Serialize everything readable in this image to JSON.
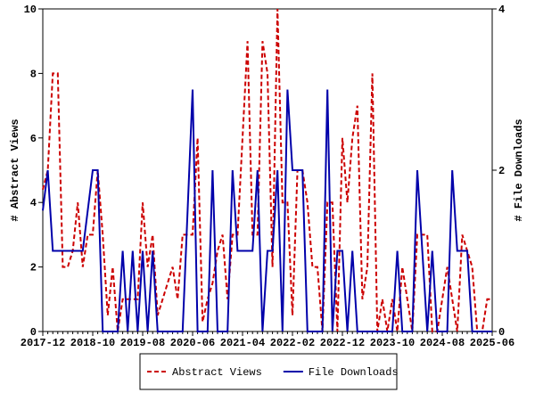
{
  "chart_data": {
    "type": "line",
    "y_label": "# Abstract Views",
    "y2_label": "# File Downloads",
    "categories": [
      "2017-12",
      null,
      null,
      null,
      null,
      null,
      null,
      null,
      null,
      null,
      "2018-10",
      null,
      null,
      null,
      null,
      null,
      null,
      null,
      null,
      null,
      "2019-08",
      null,
      null,
      null,
      null,
      null,
      null,
      null,
      null,
      null,
      "2020-06",
      null,
      null,
      null,
      null,
      null,
      null,
      null,
      null,
      null,
      "2021-04",
      null,
      null,
      null,
      null,
      null,
      null,
      null,
      null,
      null,
      "2022-02",
      null,
      null,
      null,
      null,
      null,
      null,
      null,
      null,
      null,
      "2022-12",
      null,
      null,
      null,
      null,
      null,
      null,
      null,
      null,
      null,
      "2023-10",
      null,
      null,
      null,
      null,
      null,
      null,
      null,
      null,
      null,
      "2024-08",
      null,
      null,
      null,
      null,
      null,
      null,
      null,
      null,
      null,
      "2025-06"
    ],
    "series": [
      {
        "name": "Abstract Views",
        "color": "#cc0000",
        "style": "dashed",
        "axis": "y",
        "values": [
          4.4,
          5,
          8,
          8,
          2,
          2,
          2.5,
          4,
          2,
          3,
          3,
          5,
          3,
          0.5,
          2,
          0,
          1,
          1,
          1,
          1,
          4,
          2,
          3,
          0.5,
          1,
          1.5,
          2,
          1,
          3,
          3,
          3,
          6,
          0.3,
          1,
          1.5,
          2.5,
          3,
          1,
          3,
          3,
          6,
          9,
          3,
          3,
          9,
          8,
          2,
          10,
          4,
          4,
          0.5,
          5,
          5,
          4,
          2,
          2,
          0,
          4,
          4,
          0,
          6,
          4,
          6,
          7,
          1,
          2,
          8,
          0,
          1,
          0,
          1,
          0,
          2,
          1,
          0,
          3,
          3,
          3,
          0,
          0,
          1,
          2,
          1,
          0,
          3,
          2.5,
          2,
          0,
          0,
          1,
          1
        ]
      },
      {
        "name": "File Downloads",
        "color": "#0000aa",
        "style": "solid",
        "axis": "y2",
        "values": [
          1.5,
          2,
          1,
          1,
          1,
          1,
          1,
          1,
          1,
          1.5,
          2,
          2,
          0,
          0,
          0,
          0,
          1,
          0,
          1,
          0,
          1,
          0,
          1,
          0,
          0,
          0,
          0,
          0,
          0,
          1.5,
          3,
          0,
          0,
          0,
          2,
          0,
          0,
          0,
          2,
          1,
          1,
          1,
          1,
          2,
          0,
          1,
          1,
          2,
          0,
          3,
          2,
          2,
          2,
          0,
          0,
          0,
          0,
          3,
          0,
          1,
          1,
          0,
          1,
          0,
          0,
          0,
          0,
          0,
          0,
          0,
          0,
          1,
          0,
          0,
          0,
          2,
          1,
          0,
          1,
          0,
          0,
          0,
          2,
          1,
          1,
          1,
          0,
          0,
          0,
          0,
          0
        ]
      }
    ],
    "ylim": [
      0,
      10
    ],
    "yticks": [
      0,
      2,
      4,
      6,
      8,
      10
    ],
    "y2lim": [
      0,
      4
    ],
    "y2ticks": [
      0,
      2,
      4
    ],
    "legend": "bottom"
  }
}
